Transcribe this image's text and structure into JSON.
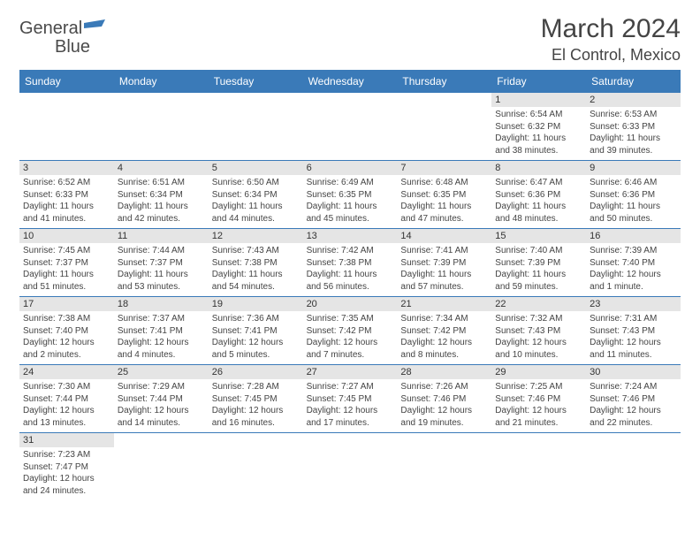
{
  "logo": {
    "text_a": "General",
    "text_b": "Blue"
  },
  "title": "March 2024",
  "location": "El Control, Mexico",
  "colors": {
    "header_bg": "#3a7ab8",
    "header_text": "#ffffff",
    "daynum_bg": "#e5e5e5",
    "border": "#3a7ab8",
    "text": "#444444"
  },
  "day_names": [
    "Sunday",
    "Monday",
    "Tuesday",
    "Wednesday",
    "Thursday",
    "Friday",
    "Saturday"
  ],
  "weeks": [
    [
      null,
      null,
      null,
      null,
      null,
      {
        "n": "1",
        "sunrise": "Sunrise: 6:54 AM",
        "sunset": "Sunset: 6:32 PM",
        "daylight": "Daylight: 11 hours and 38 minutes."
      },
      {
        "n": "2",
        "sunrise": "Sunrise: 6:53 AM",
        "sunset": "Sunset: 6:33 PM",
        "daylight": "Daylight: 11 hours and 39 minutes."
      }
    ],
    [
      {
        "n": "3",
        "sunrise": "Sunrise: 6:52 AM",
        "sunset": "Sunset: 6:33 PM",
        "daylight": "Daylight: 11 hours and 41 minutes."
      },
      {
        "n": "4",
        "sunrise": "Sunrise: 6:51 AM",
        "sunset": "Sunset: 6:34 PM",
        "daylight": "Daylight: 11 hours and 42 minutes."
      },
      {
        "n": "5",
        "sunrise": "Sunrise: 6:50 AM",
        "sunset": "Sunset: 6:34 PM",
        "daylight": "Daylight: 11 hours and 44 minutes."
      },
      {
        "n": "6",
        "sunrise": "Sunrise: 6:49 AM",
        "sunset": "Sunset: 6:35 PM",
        "daylight": "Daylight: 11 hours and 45 minutes."
      },
      {
        "n": "7",
        "sunrise": "Sunrise: 6:48 AM",
        "sunset": "Sunset: 6:35 PM",
        "daylight": "Daylight: 11 hours and 47 minutes."
      },
      {
        "n": "8",
        "sunrise": "Sunrise: 6:47 AM",
        "sunset": "Sunset: 6:36 PM",
        "daylight": "Daylight: 11 hours and 48 minutes."
      },
      {
        "n": "9",
        "sunrise": "Sunrise: 6:46 AM",
        "sunset": "Sunset: 6:36 PM",
        "daylight": "Daylight: 11 hours and 50 minutes."
      }
    ],
    [
      {
        "n": "10",
        "sunrise": "Sunrise: 7:45 AM",
        "sunset": "Sunset: 7:37 PM",
        "daylight": "Daylight: 11 hours and 51 minutes."
      },
      {
        "n": "11",
        "sunrise": "Sunrise: 7:44 AM",
        "sunset": "Sunset: 7:37 PM",
        "daylight": "Daylight: 11 hours and 53 minutes."
      },
      {
        "n": "12",
        "sunrise": "Sunrise: 7:43 AM",
        "sunset": "Sunset: 7:38 PM",
        "daylight": "Daylight: 11 hours and 54 minutes."
      },
      {
        "n": "13",
        "sunrise": "Sunrise: 7:42 AM",
        "sunset": "Sunset: 7:38 PM",
        "daylight": "Daylight: 11 hours and 56 minutes."
      },
      {
        "n": "14",
        "sunrise": "Sunrise: 7:41 AM",
        "sunset": "Sunset: 7:39 PM",
        "daylight": "Daylight: 11 hours and 57 minutes."
      },
      {
        "n": "15",
        "sunrise": "Sunrise: 7:40 AM",
        "sunset": "Sunset: 7:39 PM",
        "daylight": "Daylight: 11 hours and 59 minutes."
      },
      {
        "n": "16",
        "sunrise": "Sunrise: 7:39 AM",
        "sunset": "Sunset: 7:40 PM",
        "daylight": "Daylight: 12 hours and 1 minute."
      }
    ],
    [
      {
        "n": "17",
        "sunrise": "Sunrise: 7:38 AM",
        "sunset": "Sunset: 7:40 PM",
        "daylight": "Daylight: 12 hours and 2 minutes."
      },
      {
        "n": "18",
        "sunrise": "Sunrise: 7:37 AM",
        "sunset": "Sunset: 7:41 PM",
        "daylight": "Daylight: 12 hours and 4 minutes."
      },
      {
        "n": "19",
        "sunrise": "Sunrise: 7:36 AM",
        "sunset": "Sunset: 7:41 PM",
        "daylight": "Daylight: 12 hours and 5 minutes."
      },
      {
        "n": "20",
        "sunrise": "Sunrise: 7:35 AM",
        "sunset": "Sunset: 7:42 PM",
        "daylight": "Daylight: 12 hours and 7 minutes."
      },
      {
        "n": "21",
        "sunrise": "Sunrise: 7:34 AM",
        "sunset": "Sunset: 7:42 PM",
        "daylight": "Daylight: 12 hours and 8 minutes."
      },
      {
        "n": "22",
        "sunrise": "Sunrise: 7:32 AM",
        "sunset": "Sunset: 7:43 PM",
        "daylight": "Daylight: 12 hours and 10 minutes."
      },
      {
        "n": "23",
        "sunrise": "Sunrise: 7:31 AM",
        "sunset": "Sunset: 7:43 PM",
        "daylight": "Daylight: 12 hours and 11 minutes."
      }
    ],
    [
      {
        "n": "24",
        "sunrise": "Sunrise: 7:30 AM",
        "sunset": "Sunset: 7:44 PM",
        "daylight": "Daylight: 12 hours and 13 minutes."
      },
      {
        "n": "25",
        "sunrise": "Sunrise: 7:29 AM",
        "sunset": "Sunset: 7:44 PM",
        "daylight": "Daylight: 12 hours and 14 minutes."
      },
      {
        "n": "26",
        "sunrise": "Sunrise: 7:28 AM",
        "sunset": "Sunset: 7:45 PM",
        "daylight": "Daylight: 12 hours and 16 minutes."
      },
      {
        "n": "27",
        "sunrise": "Sunrise: 7:27 AM",
        "sunset": "Sunset: 7:45 PM",
        "daylight": "Daylight: 12 hours and 17 minutes."
      },
      {
        "n": "28",
        "sunrise": "Sunrise: 7:26 AM",
        "sunset": "Sunset: 7:46 PM",
        "daylight": "Daylight: 12 hours and 19 minutes."
      },
      {
        "n": "29",
        "sunrise": "Sunrise: 7:25 AM",
        "sunset": "Sunset: 7:46 PM",
        "daylight": "Daylight: 12 hours and 21 minutes."
      },
      {
        "n": "30",
        "sunrise": "Sunrise: 7:24 AM",
        "sunset": "Sunset: 7:46 PM",
        "daylight": "Daylight: 12 hours and 22 minutes."
      }
    ],
    [
      {
        "n": "31",
        "sunrise": "Sunrise: 7:23 AM",
        "sunset": "Sunset: 7:47 PM",
        "daylight": "Daylight: 12 hours and 24 minutes."
      },
      null,
      null,
      null,
      null,
      null,
      null
    ]
  ]
}
